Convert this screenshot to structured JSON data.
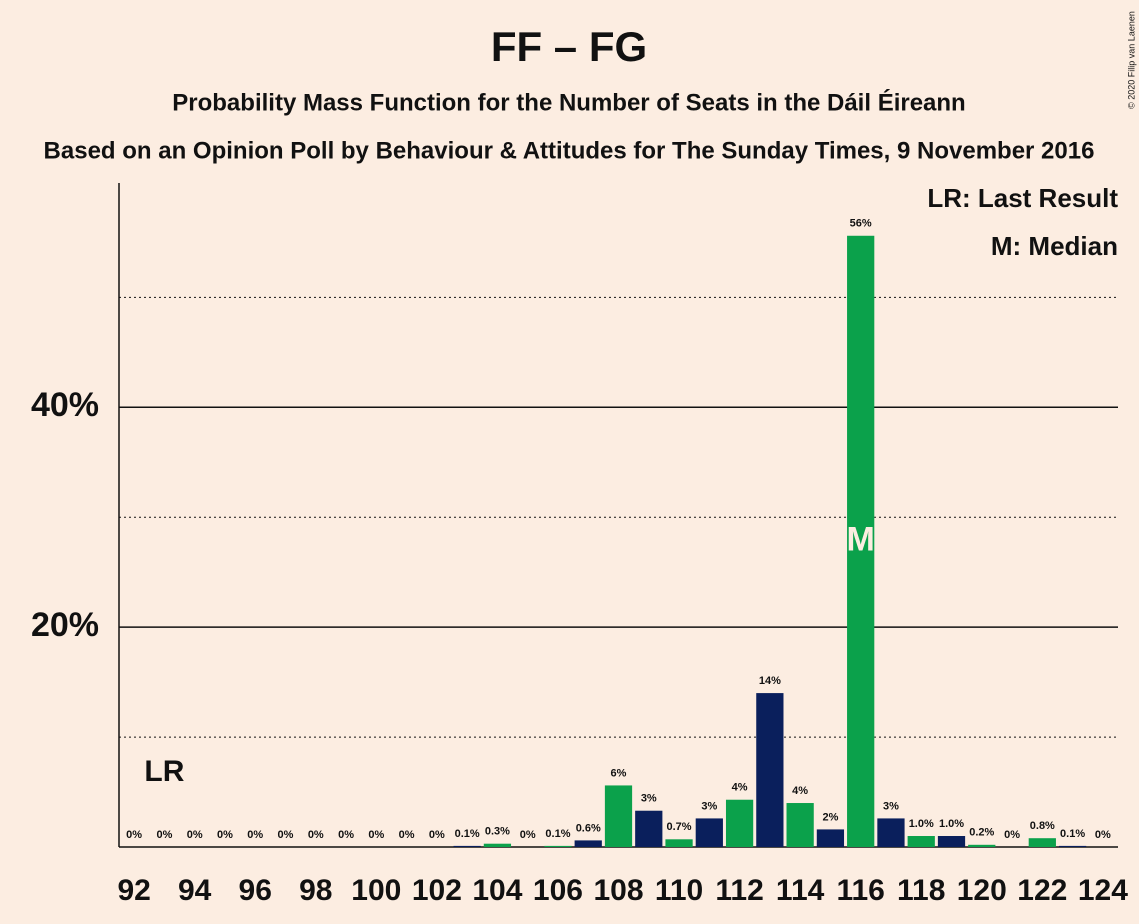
{
  "chart_data": {
    "type": "bar",
    "title": "FF – FG",
    "subtitle": "Probability Mass Function for the Number of Seats in the Dáil Éireann",
    "subtitle2": "Based on an Opinion Poll by Behaviour & Attitudes for The Sunday Times, 9 November 2016",
    "copyright": "© 2020 Filip van Laenen",
    "x": [
      92,
      93,
      94,
      95,
      96,
      97,
      98,
      99,
      100,
      101,
      102,
      103,
      104,
      105,
      106,
      107,
      108,
      109,
      110,
      111,
      112,
      113,
      114,
      115,
      116,
      117,
      118,
      119,
      120,
      121,
      122,
      123,
      124
    ],
    "values": [
      0,
      0,
      0,
      0,
      0,
      0,
      0,
      0,
      0,
      0,
      0,
      0.1,
      0.3,
      0,
      0.1,
      0.6,
      5.6,
      3.3,
      0.7,
      2.6,
      4.3,
      14.0,
      4.0,
      1.6,
      55.6,
      2.6,
      1.0,
      1.0,
      0.2,
      0,
      0.8,
      0.1,
      0
    ],
    "value_labels": [
      "0%",
      "0%",
      "0%",
      "0%",
      "0%",
      "0%",
      "0%",
      "0%",
      "0%",
      "0%",
      "0%",
      "0.1%",
      "0.3%",
      "0%",
      "0.1%",
      "0.6%",
      "6%",
      "3%",
      "0.7%",
      "3%",
      "4%",
      "14%",
      "4%",
      "2%",
      "56%",
      "3%",
      "1.0%",
      "1.0%",
      "0.2%",
      "0%",
      "0.8%",
      "0.1%",
      "0%"
    ],
    "colors": [
      "#0ba14b",
      "#0a1f5c",
      "#0ba14b",
      "#0a1f5c",
      "#0ba14b",
      "#0a1f5c",
      "#0ba14b",
      "#0a1f5c",
      "#0ba14b",
      "#0a1f5c",
      "#0ba14b",
      "#0a1f5c",
      "#0ba14b",
      "#0a1f5c",
      "#0ba14b",
      "#0a1f5c",
      "#0ba14b",
      "#0a1f5c",
      "#0ba14b",
      "#0a1f5c",
      "#0ba14b",
      "#0a1f5c",
      "#0ba14b",
      "#0a1f5c",
      "#0ba14b",
      "#0a1f5c",
      "#0ba14b",
      "#0a1f5c",
      "#0ba14b",
      "#0a1f5c",
      "#0ba14b",
      "#0a1f5c",
      "#0ba14b"
    ],
    "xlim": [
      91.5,
      124.5
    ],
    "xticks": [
      92,
      94,
      96,
      98,
      100,
      102,
      104,
      106,
      108,
      110,
      112,
      114,
      116,
      118,
      120,
      122,
      124
    ],
    "ylim": [
      0,
      60.4
    ],
    "yticks": [
      {
        "value": 20,
        "label": "20%"
      },
      {
        "value": 40,
        "label": "40%"
      }
    ],
    "minor_yticks": [
      10,
      30,
      50
    ],
    "grid": true,
    "last_result": 93,
    "last_result_label": "LR",
    "median": 116,
    "median_label": "M",
    "legend": [
      "LR: Last Result",
      "M: Median"
    ]
  }
}
